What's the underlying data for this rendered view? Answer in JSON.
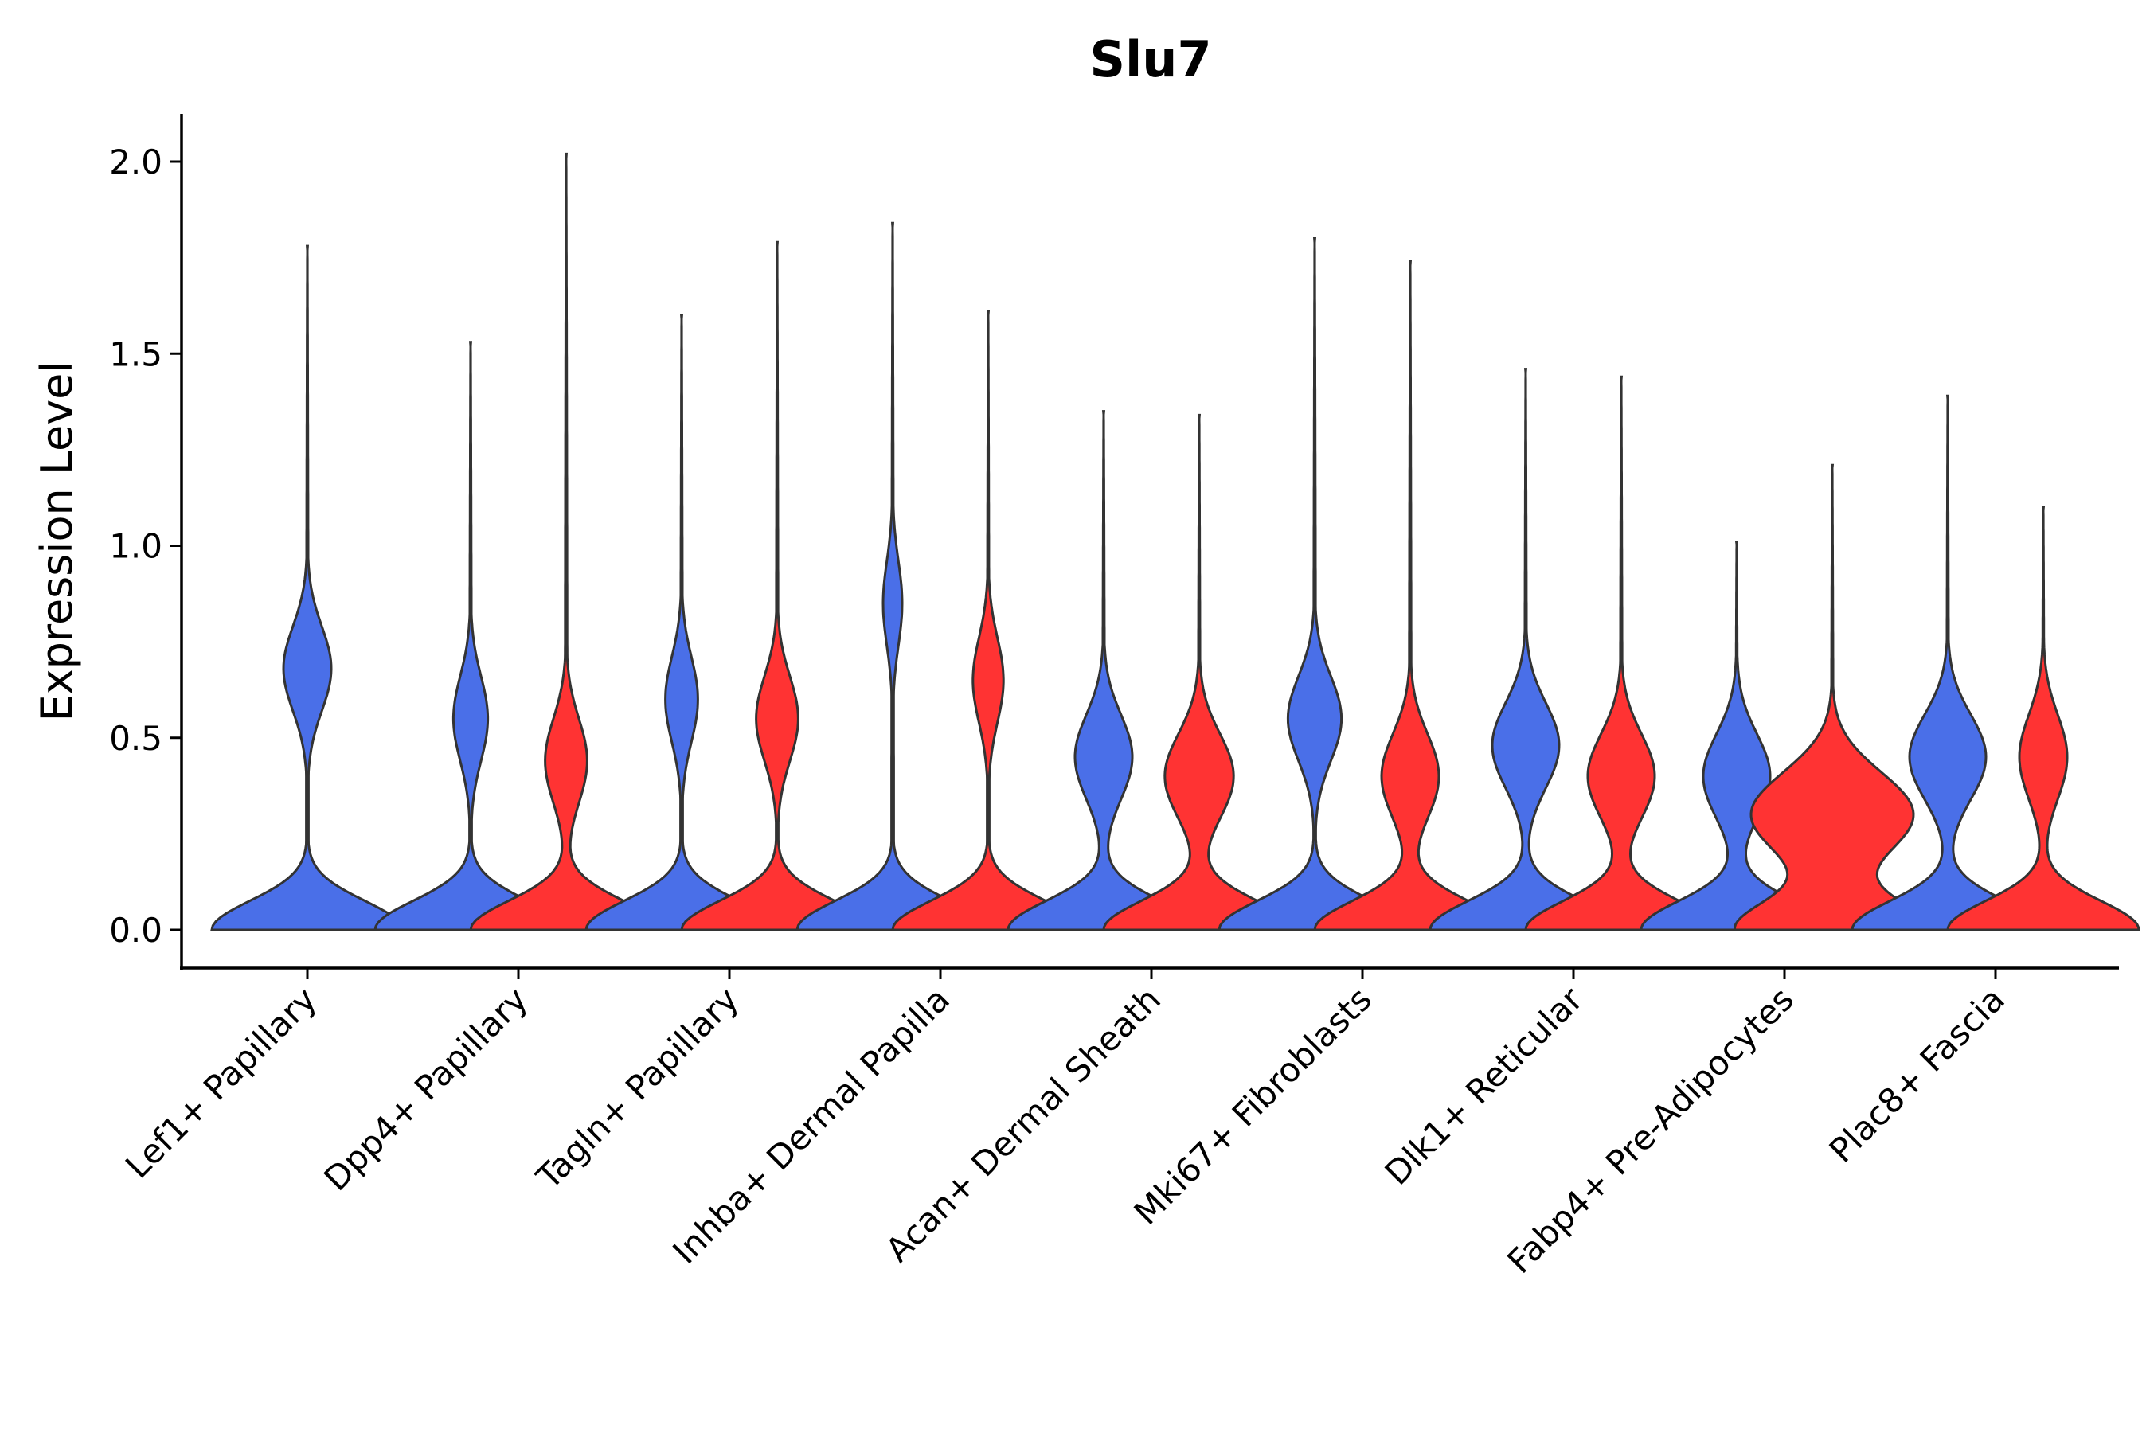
{
  "chart_data": {
    "type": "split-violin",
    "title": "Slu7",
    "xlabel": "",
    "ylabel": "Expression Level",
    "ylim": [
      -0.1,
      2.1
    ],
    "yticks": [
      "0.0",
      "0.5",
      "1.0",
      "1.5",
      "2.0"
    ],
    "grid": false,
    "legend": "none",
    "series_colors": {
      "blue": "#4A6FE8",
      "red": "#FF3333"
    },
    "categories": [
      {
        "label": "Lef1+ Papillary",
        "blue": {
          "max": 1.78,
          "modes": [
            [
              0.0,
              1.0
            ],
            [
              0.68,
              0.25
            ]
          ]
        },
        "red": null
      },
      {
        "label": "Dpp4+ Papillary",
        "blue": {
          "max": 1.53,
          "modes": [
            [
              0.0,
              1.0
            ],
            [
              0.55,
              0.18
            ]
          ]
        },
        "red": {
          "max": 2.02,
          "modes": [
            [
              0.0,
              1.0
            ],
            [
              0.44,
              0.22
            ]
          ]
        }
      },
      {
        "label": "Tagln+ Papillary",
        "blue": {
          "max": 1.6,
          "modes": [
            [
              0.0,
              1.0
            ],
            [
              0.6,
              0.17
            ]
          ]
        },
        "red": {
          "max": 1.79,
          "modes": [
            [
              0.0,
              1.0
            ],
            [
              0.55,
              0.22
            ]
          ]
        }
      },
      {
        "label": "Inhba+ Dermal Papilla",
        "blue": {
          "max": 1.84,
          "modes": [
            [
              0.0,
              1.0
            ],
            [
              0.85,
              0.1
            ]
          ]
        },
        "red": {
          "max": 1.61,
          "modes": [
            [
              0.0,
              1.0
            ],
            [
              0.65,
              0.16
            ]
          ]
        }
      },
      {
        "label": "Acan+ Dermal Sheath",
        "blue": {
          "max": 1.35,
          "modes": [
            [
              0.0,
              1.0
            ],
            [
              0.45,
              0.3
            ]
          ]
        },
        "red": {
          "max": 1.34,
          "modes": [
            [
              0.0,
              1.0
            ],
            [
              0.4,
              0.36
            ]
          ]
        }
      },
      {
        "label": "Mki67+ Fibroblasts",
        "blue": {
          "max": 1.8,
          "modes": [
            [
              0.0,
              1.0
            ],
            [
              0.55,
              0.28
            ]
          ]
        },
        "red": {
          "max": 1.74,
          "modes": [
            [
              0.0,
              1.0
            ],
            [
              0.4,
              0.3
            ]
          ]
        }
      },
      {
        "label": "Dlk1+ Reticular",
        "blue": {
          "max": 1.46,
          "modes": [
            [
              0.0,
              1.0
            ],
            [
              0.48,
              0.35
            ]
          ]
        },
        "red": {
          "max": 1.44,
          "modes": [
            [
              0.0,
              1.0
            ],
            [
              0.4,
              0.35
            ]
          ]
        }
      },
      {
        "label": "Fabp4+ Pre-Adipocytes",
        "blue": {
          "max": 1.01,
          "modes": [
            [
              0.0,
              1.0
            ],
            [
              0.4,
              0.35
            ]
          ]
        },
        "red": {
          "max": 1.21,
          "modes": [
            [
              0.0,
              1.0
            ],
            [
              0.3,
              0.85
            ]
          ]
        }
      },
      {
        "label": "Plac8+ Fascia",
        "blue": {
          "max": 1.39,
          "modes": [
            [
              0.0,
              1.0
            ],
            [
              0.45,
              0.4
            ]
          ]
        },
        "red": {
          "max": 1.1,
          "modes": [
            [
              0.0,
              1.0
            ],
            [
              0.45,
              0.25
            ]
          ]
        }
      }
    ]
  }
}
